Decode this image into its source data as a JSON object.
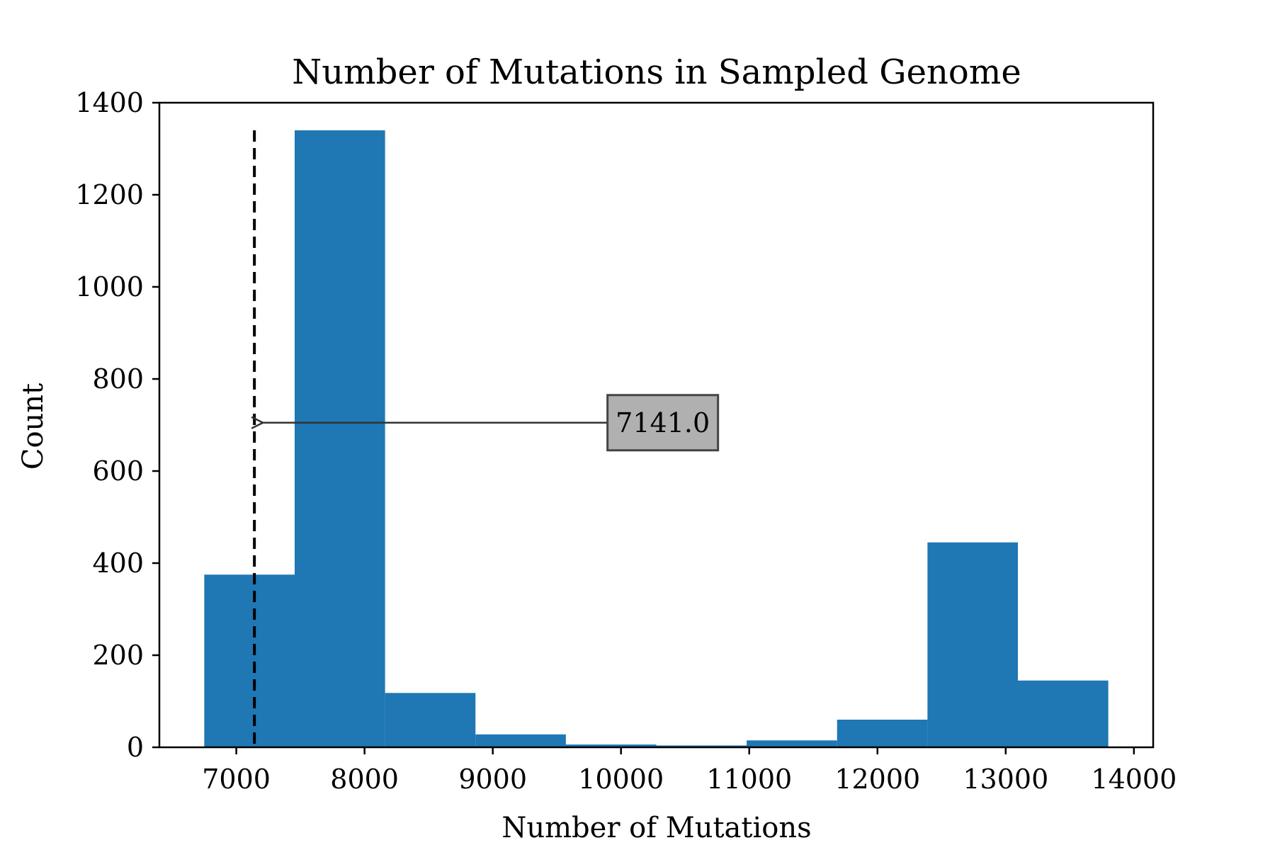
{
  "chart_data": {
    "type": "bar",
    "title": "Number of Mutations in Sampled Genome",
    "xlabel": "Number of Mutations",
    "ylabel": "Count",
    "xlim": [
      6400,
      14150
    ],
    "ylim": [
      0,
      1400
    ],
    "xticks": [
      7000,
      8000,
      9000,
      10000,
      11000,
      12000,
      13000,
      14000
    ],
    "yticks": [
      0,
      200,
      400,
      600,
      800,
      1000,
      1200,
      1400
    ],
    "bins": [
      {
        "x0": 6750,
        "x1": 7455,
        "count": 375
      },
      {
        "x0": 7455,
        "x1": 8160,
        "count": 1340
      },
      {
        "x0": 8160,
        "x1": 8865,
        "count": 118
      },
      {
        "x0": 8865,
        "x1": 9570,
        "count": 28
      },
      {
        "x0": 9570,
        "x1": 10275,
        "count": 6
      },
      {
        "x0": 10275,
        "x1": 10980,
        "count": 4
      },
      {
        "x0": 10980,
        "x1": 11685,
        "count": 15
      },
      {
        "x0": 11685,
        "x1": 12390,
        "count": 60
      },
      {
        "x0": 12390,
        "x1": 13095,
        "count": 445
      },
      {
        "x0": 13095,
        "x1": 13800,
        "count": 145
      }
    ],
    "bar_color": "#1f77b4",
    "marker_line": {
      "x": 7141.0,
      "y_top": 1340,
      "style": "dashed",
      "color": "#000000"
    },
    "annotation": {
      "text": "7141.0",
      "point_x": 7141.0,
      "point_y": 705,
      "text_x": 9950,
      "text_y": 705,
      "box_color": "#b0b0b0"
    },
    "grid": false
  }
}
